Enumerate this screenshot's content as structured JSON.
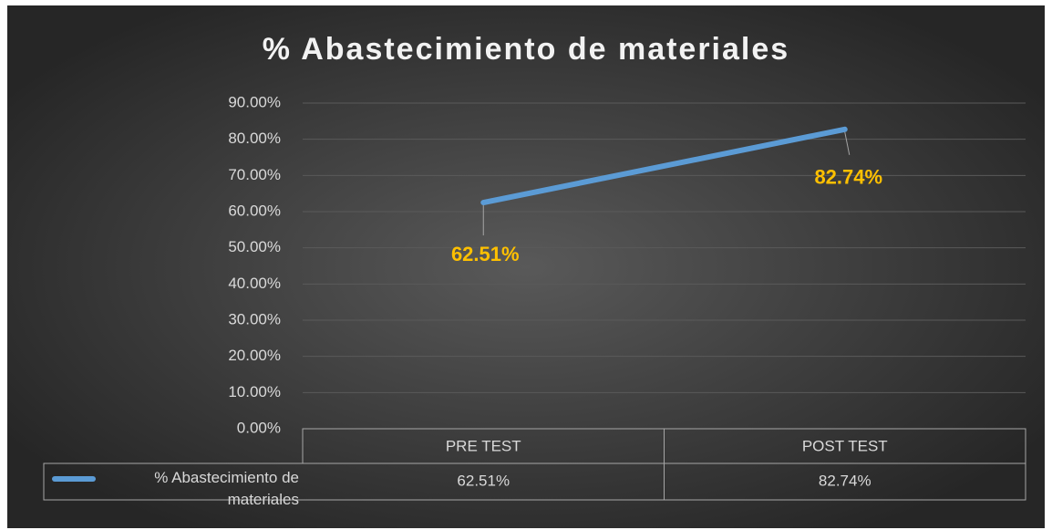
{
  "chart_data": {
    "type": "line",
    "title": "% Abastecimiento de materiales",
    "categories": [
      "PRE TEST",
      "POST TEST"
    ],
    "series": [
      {
        "name": "% Abastecimiento de materiales",
        "color": "#5b9bd5",
        "values": [
          62.51,
          82.74
        ],
        "value_labels": [
          "62.51%",
          "82.74%"
        ]
      }
    ],
    "label_color": "#ffc000",
    "ylim": [
      0,
      90
    ],
    "yticks": [
      {
        "value": 0,
        "label": "0.00%"
      },
      {
        "value": 10,
        "label": "10.00%"
      },
      {
        "value": 20,
        "label": "20.00%"
      },
      {
        "value": 30,
        "label": "30.00%"
      },
      {
        "value": 40,
        "label": "40.00%"
      },
      {
        "value": 50,
        "label": "50.00%"
      },
      {
        "value": 60,
        "label": "60.00%"
      },
      {
        "value": 70,
        "label": "70.00%"
      },
      {
        "value": 80,
        "label": "80.00%"
      },
      {
        "value": 90,
        "label": "90.00%"
      }
    ],
    "grid": true,
    "data_table": true
  }
}
